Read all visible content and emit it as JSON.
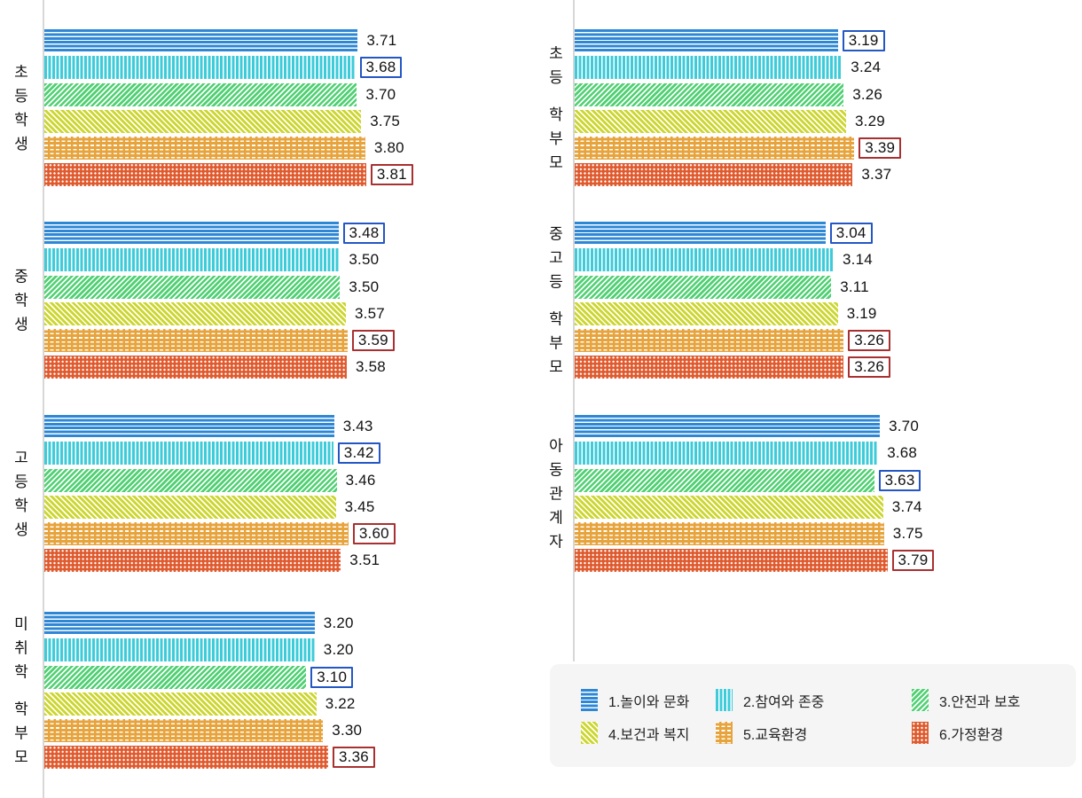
{
  "chart_data": {
    "type": "bar",
    "orientation": "horizontal",
    "value_range": [
      0,
      4
    ],
    "grid": false,
    "categories": [
      "1.놀이와 문화",
      "2.참여와 존중",
      "3.안전과 보호",
      "4.보건과 복지",
      "5.교육환경",
      "6.가정환경"
    ],
    "legend": {
      "position": "bottom-right",
      "items": [
        {
          "label": "1.놀이와 문화",
          "pattern": "p1"
        },
        {
          "label": "2.참여와 존중",
          "pattern": "p2"
        },
        {
          "label": "3.안전과 보호",
          "pattern": "p3"
        },
        {
          "label": "4.보건과 복지",
          "pattern": "p4"
        },
        {
          "label": "5.교육환경",
          "pattern": "p5"
        },
        {
          "label": "6.가정환경",
          "pattern": "p6"
        }
      ]
    },
    "columns": [
      {
        "side": "left",
        "groups": [
          {
            "label": "초등학생",
            "values": [
              3.71,
              3.68,
              3.7,
              3.75,
              3.8,
              3.81
            ],
            "value_labels": [
              "3.71",
              "3.68",
              "3.70",
              "3.75",
              "3.80",
              "3.81"
            ],
            "marks": [
              null,
              "min",
              null,
              null,
              null,
              "max"
            ]
          },
          {
            "label": "중학생",
            "values": [
              3.48,
              3.5,
              3.5,
              3.57,
              3.59,
              3.58
            ],
            "value_labels": [
              "3.48",
              "3.50",
              "3.50",
              "3.57",
              "3.59",
              "3.58"
            ],
            "marks": [
              "min",
              null,
              null,
              null,
              "max",
              null
            ]
          },
          {
            "label": "고등학생",
            "values": [
              3.43,
              3.42,
              3.46,
              3.45,
              3.6,
              3.51
            ],
            "value_labels": [
              "3.43",
              "3.42",
              "3.46",
              "3.45",
              "3.60",
              "3.51"
            ],
            "marks": [
              null,
              "min",
              null,
              null,
              "max",
              null
            ]
          },
          {
            "label": "미취학 학부모",
            "values": [
              3.2,
              3.2,
              3.1,
              3.22,
              3.3,
              3.36
            ],
            "value_labels": [
              "3.20",
              "3.20",
              "3.10",
              "3.22",
              "3.30",
              "3.36"
            ],
            "marks": [
              null,
              null,
              "min",
              null,
              null,
              "max"
            ]
          }
        ]
      },
      {
        "side": "right",
        "groups": [
          {
            "label": "초등 학부모",
            "values": [
              3.19,
              3.24,
              3.26,
              3.29,
              3.39,
              3.37
            ],
            "value_labels": [
              "3.19",
              "3.24",
              "3.26",
              "3.29",
              "3.39",
              "3.37"
            ],
            "marks": [
              "min",
              null,
              null,
              null,
              "max",
              null
            ]
          },
          {
            "label": "중고등 학부모",
            "values": [
              3.04,
              3.14,
              3.11,
              3.19,
              3.26,
              3.26
            ],
            "value_labels": [
              "3.04",
              "3.14",
              "3.11",
              "3.19",
              "3.26",
              "3.26"
            ],
            "marks": [
              "min",
              null,
              null,
              null,
              "max",
              "max"
            ]
          },
          {
            "label": "아동관계자",
            "values": [
              3.7,
              3.68,
              3.63,
              3.74,
              3.75,
              3.79
            ],
            "value_labels": [
              "3.70",
              "3.68",
              "3.63",
              "3.74",
              "3.75",
              "3.79"
            ],
            "marks": [
              null,
              null,
              "min",
              null,
              null,
              "max"
            ]
          }
        ]
      }
    ],
    "colors": {
      "p1": "#2e87d5",
      "p2": "#3dcbd9",
      "p3": "#4fd072",
      "p4": "#ccd62e",
      "p5": "#e7a33c",
      "p6": "#df5a2e",
      "min_box_border": "#2456c4",
      "max_box_border": "#a93030",
      "axis": "#d7d7d7",
      "legend_bg": "#f5f5f5",
      "text": "#111111"
    }
  }
}
